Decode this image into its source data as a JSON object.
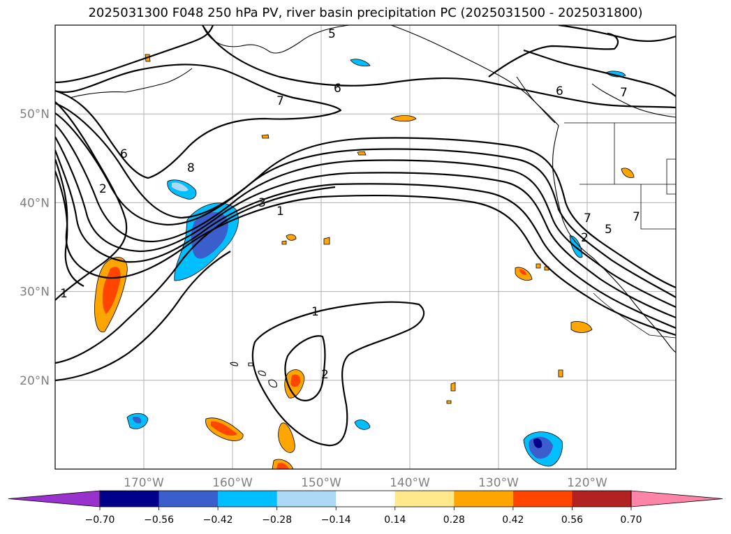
{
  "title": "2025031300 F048 250 hPa PV, river basin precipitation PC (2025031500 - 2025031800)",
  "map": {
    "extent": {
      "lon_min": -180,
      "lon_max": -110,
      "lat_min": 10,
      "lat_max": 60
    },
    "lat_ticks": [
      {
        "lat": 50,
        "label": "50°N"
      },
      {
        "lat": 40,
        "label": "40°N"
      },
      {
        "lat": 30,
        "label": "30°N"
      },
      {
        "lat": 20,
        "label": "20°N"
      }
    ],
    "lon_ticks": [
      {
        "lon": -170,
        "label": "170°W"
      },
      {
        "lon": -160,
        "label": "160°W"
      },
      {
        "lon": -150,
        "label": "150°W"
      },
      {
        "lon": -140,
        "label": "140°W"
      },
      {
        "lon": -130,
        "label": "130°W"
      },
      {
        "lon": -120,
        "label": "120°W"
      }
    ],
    "gridlines": true,
    "pv_contour_labels": [
      "1",
      "2",
      "3",
      "5",
      "6",
      "7",
      "8"
    ]
  },
  "colorbar": {
    "levels": [
      "−0.70",
      "−0.56",
      "−0.42",
      "−0.28",
      "−0.14",
      "0.14",
      "0.28",
      "0.42",
      "0.56",
      "0.70"
    ],
    "colors": [
      "#9932cc",
      "#00008b",
      "#3a5fcd",
      "#00bfff",
      "#add8f6",
      "#ffffff",
      "#ffe98b",
      "#ffa500",
      "#ff4500",
      "#b22222",
      "#ff85a8"
    ],
    "extend": "both"
  }
}
